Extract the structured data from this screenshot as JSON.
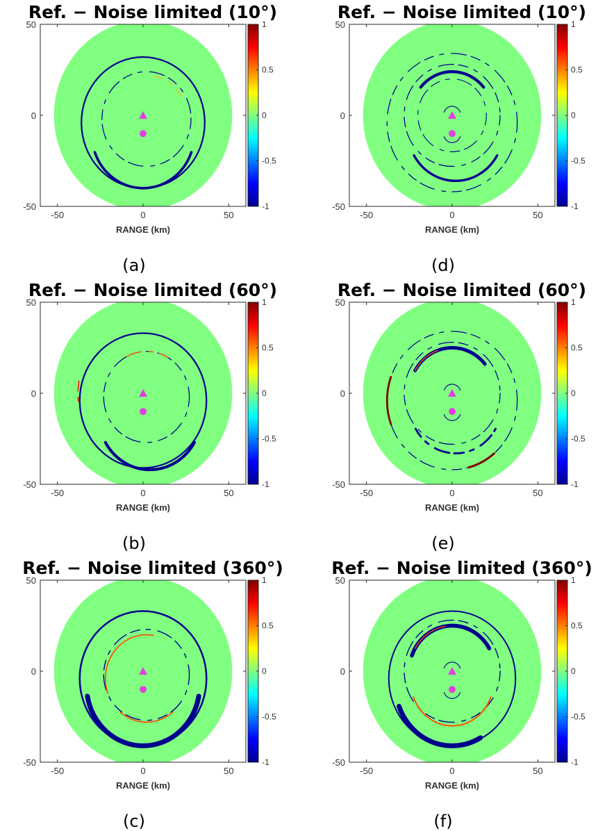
{
  "chart_data": [
    {
      "type": "heatmap",
      "panel_label": "(a)",
      "title": "Ref. − Noise limited (10°)",
      "xlabel": "RANGE (km)",
      "ylabel": "",
      "xlim": [
        -60,
        60
      ],
      "ylim": [
        -50,
        50
      ],
      "xticks": [
        -50,
        0,
        50
      ],
      "yticks": [
        -50,
        0,
        50
      ],
      "colorbar": {
        "range": [
          -1,
          1
        ],
        "ticks": [
          "1",
          "0.5",
          "0",
          "-0.5",
          "-1"
        ],
        "colormap": "jet"
      },
      "background_value": 0,
      "disk_radius_km": 52,
      "markers": [
        {
          "shape": "triangle",
          "x": 0,
          "y": 0,
          "color": "#e040e0"
        },
        {
          "shape": "circle",
          "x": 0,
          "y": -10,
          "color": "#e040e0"
        }
      ],
      "rings": [
        {
          "cx": 0,
          "cy": -4,
          "r": 36,
          "value": -1,
          "arc_start": 0,
          "arc_end": 360,
          "thickness": 1.6,
          "dashed": false
        },
        {
          "cx": 0,
          "cy": -10,
          "r": 30,
          "value": -1,
          "arc_start": 200,
          "arc_end": 340,
          "thickness": 2.6,
          "dashed": false
        },
        {
          "cx": 2,
          "cy": -2,
          "r": 26,
          "value": -1,
          "arc_start": 0,
          "arc_end": 360,
          "thickness": 0.9,
          "dashed": true
        },
        {
          "cx": 2,
          "cy": -2,
          "r": 24,
          "value": 0.4,
          "arc_start": 30,
          "arc_end": 80,
          "thickness": 0.8,
          "dashed": true
        }
      ]
    },
    {
      "type": "heatmap",
      "panel_label": "(b)",
      "title": "Ref. − Noise limited (60°)",
      "xlabel": "RANGE (km)",
      "ylabel": "",
      "xlim": [
        -60,
        60
      ],
      "ylim": [
        -50,
        50
      ],
      "xticks": [
        -50,
        0,
        50
      ],
      "yticks": [
        -50,
        0,
        50
      ],
      "colorbar": {
        "range": [
          -1,
          1
        ],
        "ticks": [
          "1",
          "0.5",
          "0",
          "-0.5",
          "-1"
        ],
        "colormap": "jet"
      },
      "background_value": 0,
      "disk_radius_km": 52,
      "markers": [
        {
          "shape": "triangle",
          "x": 0,
          "y": 0,
          "color": "#e040e0"
        },
        {
          "shape": "circle",
          "x": 0,
          "y": -10,
          "color": "#e040e0"
        }
      ],
      "rings": [
        {
          "cx": 0,
          "cy": -4,
          "r": 37,
          "value": -1,
          "arc_start": 0,
          "arc_end": 360,
          "thickness": 1.6,
          "dashed": false
        },
        {
          "cx": 4,
          "cy": -12,
          "r": 30,
          "value": -1,
          "arc_start": 210,
          "arc_end": 330,
          "thickness": 3,
          "dashed": false
        },
        {
          "cx": 2,
          "cy": -2,
          "r": 25,
          "value": -1,
          "arc_start": 0,
          "arc_end": 360,
          "thickness": 0.9,
          "dashed": true
        },
        {
          "cx": 2,
          "cy": -2,
          "r": 25,
          "value": 0.6,
          "arc_start": 60,
          "arc_end": 120,
          "thickness": 1,
          "dashed": true
        },
        {
          "cx": 0,
          "cy": 0,
          "r": 38,
          "value": 0.7,
          "arc_start": 170,
          "arc_end": 190,
          "thickness": 1.2,
          "dashed": true
        }
      ]
    },
    {
      "type": "heatmap",
      "panel_label": "(c)",
      "title": "Ref. − Noise limited (360°)",
      "xlabel": "RANGE (km)",
      "ylabel": "",
      "xlim": [
        -60,
        60
      ],
      "ylim": [
        -50,
        50
      ],
      "xticks": [
        -50,
        0,
        50
      ],
      "yticks": [
        -50,
        0,
        50
      ],
      "colorbar": {
        "range": [
          -1,
          1
        ],
        "ticks": [
          "1",
          "0.5",
          "0",
          "-0.5",
          "-1"
        ],
        "colormap": "jet"
      },
      "background_value": 0,
      "disk_radius_km": 52,
      "markers": [
        {
          "shape": "triangle",
          "x": 0,
          "y": 0,
          "color": "#e040e0"
        },
        {
          "shape": "circle",
          "x": 0,
          "y": -10,
          "color": "#e040e0"
        }
      ],
      "rings": [
        {
          "cx": 0,
          "cy": -4,
          "r": 37,
          "value": -1,
          "arc_start": 0,
          "arc_end": 360,
          "thickness": 1.8,
          "dashed": false
        },
        {
          "cx": 0,
          "cy": -8,
          "r": 33,
          "value": -1,
          "arc_start": 190,
          "arc_end": 350,
          "thickness": 5,
          "dashed": false
        },
        {
          "cx": 2,
          "cy": -2,
          "r": 25,
          "value": -1,
          "arc_start": 0,
          "arc_end": 360,
          "thickness": 1,
          "dashed": true
        },
        {
          "cx": 2,
          "cy": -4,
          "r": 24,
          "value": 0.6,
          "arc_start": 80,
          "arc_end": 200,
          "thickness": 1.2,
          "dashed": false
        },
        {
          "cx": 2,
          "cy": -4,
          "r": 24,
          "value": 0.6,
          "arc_start": 230,
          "arc_end": 310,
          "thickness": 1.2,
          "dashed": false
        }
      ]
    },
    {
      "type": "heatmap",
      "panel_label": "(d)",
      "title": "Ref. − Noise limited (10°)",
      "xlabel": "RANGE (km)",
      "ylabel": "",
      "xlim": [
        -60,
        60
      ],
      "ylim": [
        -50,
        50
      ],
      "xticks": [
        -50,
        0,
        50
      ],
      "yticks": [
        -50,
        0,
        50
      ],
      "colorbar": {
        "range": [
          -1,
          1
        ],
        "ticks": [
          "1",
          "0.5",
          "0",
          "-0.5",
          "-1"
        ],
        "colormap": "jet"
      },
      "background_value": 0,
      "disk_radius_km": 52,
      "markers": [
        {
          "shape": "triangle",
          "x": 0,
          "y": 0,
          "color": "#e040e0"
        },
        {
          "shape": "circle",
          "x": 0,
          "y": -10,
          "color": "#e040e0"
        }
      ],
      "rings": [
        {
          "cx": 0,
          "cy": -4,
          "r": 38,
          "value": -1,
          "arc_start": 0,
          "arc_end": 360,
          "thickness": 0.9,
          "dashed": true
        },
        {
          "cx": 0,
          "cy": 0,
          "r": 24,
          "value": -1,
          "arc_start": 40,
          "arc_end": 140,
          "thickness": 3,
          "dashed": false
        },
        {
          "cx": 2,
          "cy": -8,
          "r": 28,
          "value": -1,
          "arc_start": 210,
          "arc_end": 330,
          "thickness": 2.4,
          "dashed": false
        },
        {
          "cx": 0,
          "cy": 0,
          "r": 28,
          "value": -1,
          "arc_start": 0,
          "arc_end": 360,
          "thickness": 0.9,
          "dashed": true
        },
        {
          "cx": 0,
          "cy": 0,
          "r": 20,
          "value": -1,
          "arc_start": 0,
          "arc_end": 360,
          "thickness": 0.8,
          "dashed": true
        },
        {
          "cx": 0,
          "cy": 0,
          "r": 5,
          "value": -1,
          "arc_start": 20,
          "arc_end": 160,
          "thickness": 0.8,
          "dashed": false
        },
        {
          "cx": 0,
          "cy": -10,
          "r": 5,
          "value": -1,
          "arc_start": 200,
          "arc_end": 340,
          "thickness": 0.8,
          "dashed": false
        }
      ]
    },
    {
      "type": "heatmap",
      "panel_label": "(e)",
      "title": "Ref. − Noise limited (60°)",
      "xlabel": "RANGE (km)",
      "ylabel": "",
      "xlim": [
        -60,
        60
      ],
      "ylim": [
        -50,
        50
      ],
      "xticks": [
        -50,
        0,
        50
      ],
      "yticks": [
        -50,
        0,
        50
      ],
      "colorbar": {
        "range": [
          -1,
          1
        ],
        "ticks": [
          "1",
          "0.5",
          "0",
          "-0.5",
          "-1"
        ],
        "colormap": "jet"
      },
      "background_value": 0,
      "disk_radius_km": 52,
      "markers": [
        {
          "shape": "triangle",
          "x": 0,
          "y": 0,
          "color": "#e040e0"
        },
        {
          "shape": "circle",
          "x": 0,
          "y": -10,
          "color": "#e040e0"
        }
      ],
      "rings": [
        {
          "cx": 0,
          "cy": -4,
          "r": 38,
          "value": -1,
          "arc_start": 0,
          "arc_end": 360,
          "thickness": 0.9,
          "dashed": true
        },
        {
          "cx": 0,
          "cy": 0,
          "r": 25,
          "value": -1,
          "arc_start": 40,
          "arc_end": 150,
          "thickness": 3.5,
          "dashed": false
        },
        {
          "cx": 0,
          "cy": 0,
          "r": 28,
          "value": -1,
          "arc_start": 0,
          "arc_end": 360,
          "thickness": 0.9,
          "dashed": true
        },
        {
          "cx": 2,
          "cy": -6,
          "r": 27,
          "value": -1,
          "arc_start": 210,
          "arc_end": 330,
          "thickness": 2,
          "dashed": true
        },
        {
          "cx": 0,
          "cy": -4,
          "r": 38,
          "value": 1,
          "arc_start": 160,
          "arc_end": 200,
          "thickness": 2,
          "dashed": false
        },
        {
          "cx": 0,
          "cy": -4,
          "r": 38,
          "value": 1,
          "arc_start": 285,
          "arc_end": 310,
          "thickness": 2.2,
          "dashed": false
        },
        {
          "cx": 0,
          "cy": 0,
          "r": 25,
          "value": 0.6,
          "arc_start": 110,
          "arc_end": 150,
          "thickness": 1,
          "dashed": false
        },
        {
          "cx": 0,
          "cy": 0,
          "r": 5,
          "value": -1,
          "arc_start": 20,
          "arc_end": 160,
          "thickness": 0.8,
          "dashed": false
        },
        {
          "cx": 0,
          "cy": -10,
          "r": 5,
          "value": -1,
          "arc_start": 200,
          "arc_end": 340,
          "thickness": 0.8,
          "dashed": false
        }
      ]
    },
    {
      "type": "heatmap",
      "panel_label": "(f)",
      "title": "Ref. − Noise limited (360°)",
      "xlabel": "RANGE (km)",
      "ylabel": "",
      "xlim": [
        -60,
        60
      ],
      "ylim": [
        -50,
        50
      ],
      "xticks": [
        -50,
        0,
        50
      ],
      "yticks": [
        -50,
        0,
        50
      ],
      "colorbar": {
        "range": [
          -1,
          1
        ],
        "ticks": [
          "1",
          "0.5",
          "0",
          "-0.5",
          "-1"
        ],
        "colormap": "jet"
      },
      "background_value": 0,
      "disk_radius_km": 52,
      "markers": [
        {
          "shape": "triangle",
          "x": 0,
          "y": 0,
          "color": "#e040e0"
        },
        {
          "shape": "circle",
          "x": 0,
          "y": -10,
          "color": "#e040e0"
        }
      ],
      "rings": [
        {
          "cx": 0,
          "cy": -4,
          "r": 37,
          "value": -1,
          "arc_start": 0,
          "arc_end": 360,
          "thickness": 1.4,
          "dashed": false
        },
        {
          "cx": 0,
          "cy": 0,
          "r": 25,
          "value": -1,
          "arc_start": 30,
          "arc_end": 160,
          "thickness": 4,
          "dashed": false
        },
        {
          "cx": 0,
          "cy": -8,
          "r": 33,
          "value": -1,
          "arc_start": 200,
          "arc_end": 300,
          "thickness": 5,
          "dashed": false
        },
        {
          "cx": 0,
          "cy": 0,
          "r": 28,
          "value": -1,
          "arc_start": 0,
          "arc_end": 360,
          "thickness": 1,
          "dashed": true
        },
        {
          "cx": 0,
          "cy": -6,
          "r": 24,
          "value": 0.6,
          "arc_start": 200,
          "arc_end": 340,
          "thickness": 1.4,
          "dashed": false
        },
        {
          "cx": 0,
          "cy": 0,
          "r": 25,
          "value": 0.6,
          "arc_start": 100,
          "arc_end": 150,
          "thickness": 1,
          "dashed": false
        },
        {
          "cx": 0,
          "cy": 0,
          "r": 5,
          "value": -1,
          "arc_start": 20,
          "arc_end": 160,
          "thickness": 0.8,
          "dashed": false
        },
        {
          "cx": 0,
          "cy": -10,
          "r": 5,
          "value": -1,
          "arc_start": 200,
          "arc_end": 340,
          "thickness": 0.8,
          "dashed": false
        }
      ]
    }
  ]
}
